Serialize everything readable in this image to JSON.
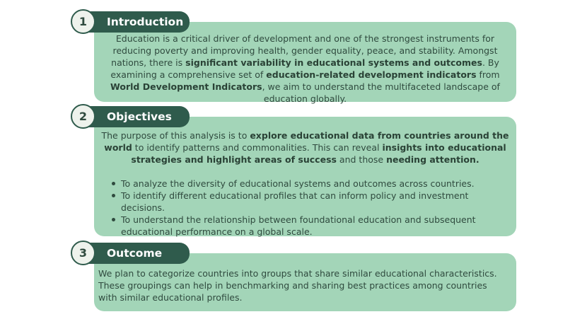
{
  "sections": [
    {
      "number": "1",
      "title": "Introduction"
    },
    {
      "number": "2",
      "title": "Objectives"
    },
    {
      "number": "3",
      "title": "Outcome"
    }
  ],
  "intro": {
    "t1": "Education is a critical driver of development and one of the strongest instruments for reducing poverty and improving health, gender equality, peace, and stability. Amongst nations, there is ",
    "b1": "significant variability in educational systems and outcomes",
    "t2": ". By examining a comprehensive set of ",
    "b2": "education-related development indicators",
    "t3": " from ",
    "b3": "World Development Indicators",
    "t4": ", we aim to understand the multifaceted landscape of education globally."
  },
  "objectives": {
    "t1": "The purpose of this analysis is to ",
    "b1": "explore educational data from countries around the world",
    "t2": " to identify patterns and commonalities. This can reveal ",
    "b2": "insights into educational strategies and highlight areas of success",
    "t3": " and those ",
    "b3": "needing attention.",
    "bullets": [
      "To analyze the diversity of educational systems and outcomes across countries.",
      "To identify different educational profiles that can inform policy and investment decisions.",
      "To understand the relationship between foundational education and subsequent educational performance on a global scale."
    ]
  },
  "outcome": {
    "text": "We plan to categorize countries into groups that share similar educational characteristics. These groupings can help in benchmarking and sharing best practices among countries with similar educational profiles."
  },
  "colors": {
    "card_bg": "#a3d5b8",
    "header_bg": "#2f5b4c",
    "badge_bg": "#eef2ec",
    "text": "#2f4a3e"
  }
}
